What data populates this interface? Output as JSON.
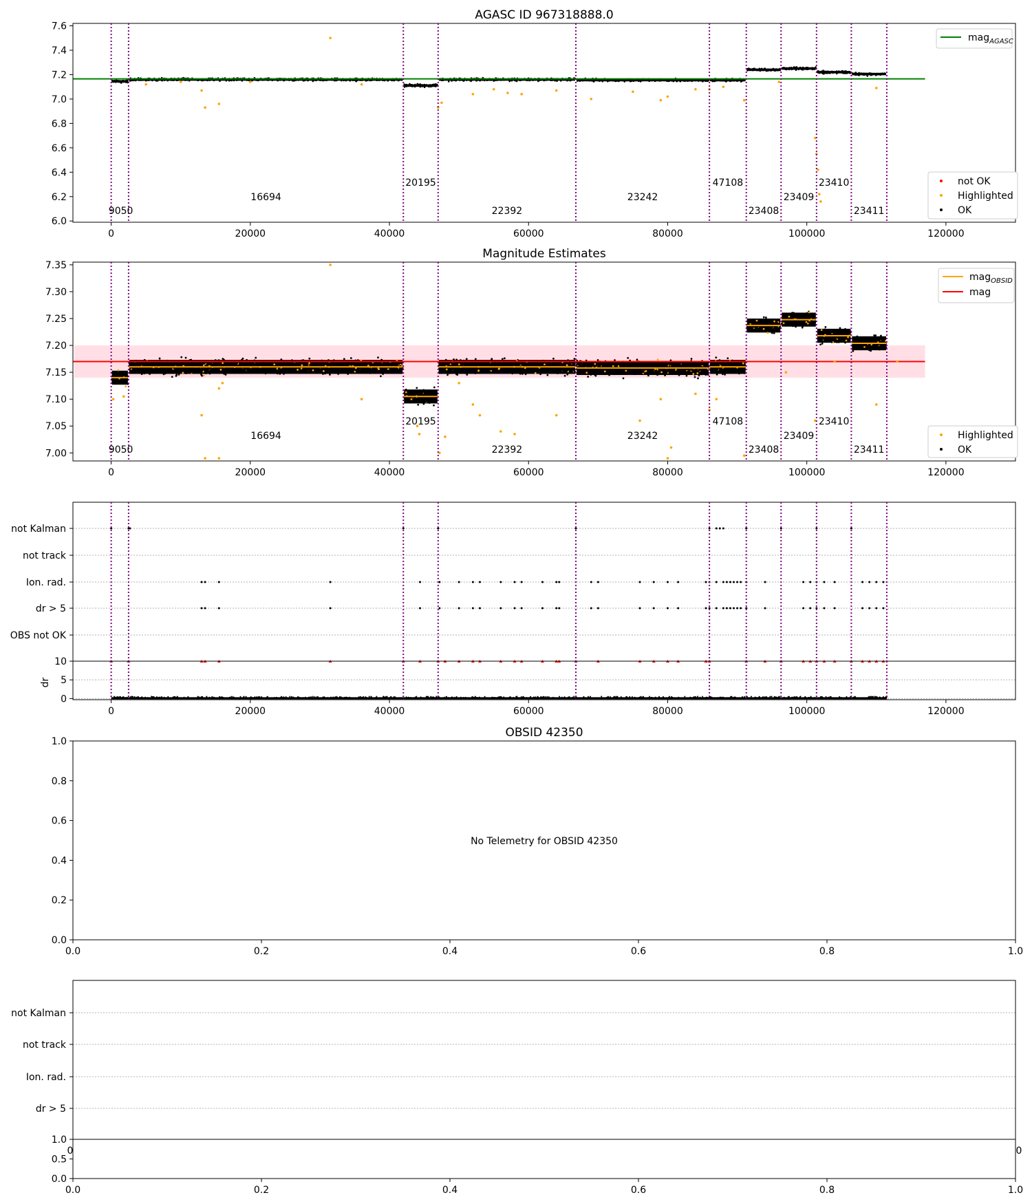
{
  "colors": {
    "ok": "#000000",
    "highlighted": "#ffa500",
    "not_ok": "#ff0000",
    "mag_agasc": "#008000",
    "mag": "#ff0000",
    "mag_obsid": "#ffa500",
    "obs_boundary": "#800080",
    "band": "#ffc0cb",
    "grid": "#b0b0b0"
  },
  "chart_data": [
    {
      "id": "agasc",
      "type": "scatter",
      "title": "AGASC ID 967318888.0",
      "xlim": [
        -5500,
        130000
      ],
      "ylim": [
        5.99,
        7.62
      ],
      "xticks": [
        0,
        20000,
        40000,
        60000,
        80000,
        100000,
        120000
      ],
      "yticks": [
        6.0,
        6.2,
        6.4,
        6.6,
        6.8,
        7.0,
        7.2,
        7.4,
        7.6
      ],
      "ytick_labels": [
        "6.0",
        "6.2",
        "6.4",
        "6.6",
        "6.8",
        "7.0",
        "7.2",
        "7.4",
        "7.6"
      ],
      "mag_agasc": 7.165,
      "line_legend": [
        {
          "name": "mag",
          "sub": "AGASC",
          "color": "#008000"
        }
      ],
      "point_legend": [
        "not OK",
        "Highlighted",
        "OK"
      ],
      "highlighted_points": [
        [
          31500,
          7.5
        ],
        [
          13500,
          6.93
        ],
        [
          15500,
          6.96
        ],
        [
          13000,
          7.07
        ],
        [
          5000,
          7.12
        ],
        [
          10000,
          7.14
        ],
        [
          20000,
          7.14
        ],
        [
          36000,
          7.12
        ],
        [
          47000,
          6.93
        ],
        [
          47500,
          6.97
        ],
        [
          52000,
          7.04
        ],
        [
          55000,
          7.08
        ],
        [
          57000,
          7.05
        ],
        [
          59000,
          7.04
        ],
        [
          64000,
          7.07
        ],
        [
          69000,
          7.0
        ],
        [
          75000,
          7.06
        ],
        [
          79000,
          6.99
        ],
        [
          80000,
          7.02
        ],
        [
          84000,
          7.08
        ],
        [
          86000,
          7.08
        ],
        [
          88000,
          7.1
        ],
        [
          91000,
          6.99
        ],
        [
          101200,
          6.68
        ],
        [
          101400,
          6.55
        ],
        [
          101600,
          6.42
        ],
        [
          101800,
          6.22
        ],
        [
          102000,
          6.16
        ],
        [
          110000,
          7.09
        ],
        [
          96000,
          7.14
        ]
      ]
    },
    {
      "id": "mag_estimates",
      "type": "scatter",
      "title": "Magnitude Estimates",
      "xlim": [
        -5500,
        130000
      ],
      "ylim": [
        6.985,
        7.355
      ],
      "xticks": [
        0,
        20000,
        40000,
        60000,
        80000,
        100000,
        120000
      ],
      "yticks": [
        7.0,
        7.05,
        7.1,
        7.15,
        7.2,
        7.25,
        7.3,
        7.35
      ],
      "ytick_labels": [
        "7.00",
        "7.05",
        "7.10",
        "7.15",
        "7.20",
        "7.25",
        "7.30",
        "7.35"
      ],
      "mag": 7.17,
      "mag_band": [
        7.14,
        7.2
      ],
      "line_legend": [
        {
          "name": "mag",
          "sub": "OBSID",
          "color": "#ffa500"
        },
        {
          "name": "mag",
          "sub": "",
          "color": "#ff0000"
        }
      ],
      "point_legend": [
        "Highlighted",
        "OK"
      ],
      "highlighted_points": [
        [
          31500,
          7.35
        ],
        [
          13000,
          7.07
        ],
        [
          15500,
          7.12
        ],
        [
          16000,
          7.13
        ],
        [
          300,
          7.1
        ],
        [
          1800,
          7.105
        ],
        [
          36000,
          7.1
        ],
        [
          44000,
          7.05
        ],
        [
          44300,
          7.035
        ],
        [
          47200,
          7.0
        ],
        [
          48000,
          7.03
        ],
        [
          50000,
          7.13
        ],
        [
          52000,
          7.09
        ],
        [
          53000,
          7.07
        ],
        [
          56000,
          7.04
        ],
        [
          58000,
          7.035
        ],
        [
          64000,
          7.07
        ],
        [
          76000,
          7.06
        ],
        [
          79000,
          7.1
        ],
        [
          80500,
          7.01
        ],
        [
          84000,
          7.11
        ],
        [
          86000,
          7.08
        ],
        [
          87000,
          7.1
        ],
        [
          91000,
          6.995
        ],
        [
          97000,
          7.15
        ],
        [
          101200,
          7.06
        ],
        [
          104000,
          7.17
        ],
        [
          110000,
          7.09
        ],
        [
          113000,
          7.17
        ],
        [
          13500,
          6.99
        ],
        [
          15500,
          6.99
        ],
        [
          80000,
          6.99
        ]
      ]
    },
    {
      "id": "flags",
      "type": "scatter",
      "rows": [
        "not Kalman",
        "not track",
        "Ion. rad.",
        "dr > 5",
        "OBS not OK"
      ],
      "row_points": {
        "not Kalman": [
          0,
          2500,
          2700,
          42000,
          47000,
          66800,
          86000,
          87000,
          87500,
          88000,
          91300,
          96300,
          101400,
          106400
        ],
        "Ion. rad.": [
          13000,
          13500,
          15500,
          31500,
          44400,
          47200,
          50000,
          52000,
          53000,
          56000,
          58000,
          59000,
          62000,
          64000,
          64400,
          69000,
          70000,
          76000,
          78000,
          80000,
          81500,
          85500,
          86000,
          87000,
          88000,
          88500,
          89000,
          89500,
          90000,
          90500,
          91300,
          94000,
          99500,
          100500,
          101400,
          102500,
          104000,
          108000,
          109000,
          110000,
          111000
        ],
        "dr > 5": [
          13000,
          13500,
          15500,
          31500,
          44400,
          47200,
          50000,
          52000,
          53000,
          56000,
          58000,
          59000,
          62000,
          64000,
          64400,
          69000,
          70000,
          76000,
          78000,
          80000,
          81500,
          85500,
          86000,
          87000,
          88000,
          88500,
          89000,
          89500,
          90000,
          90500,
          91300,
          94000,
          99500,
          100500,
          101400,
          102500,
          104000,
          108000,
          109000,
          110000,
          111000
        ]
      }
    },
    {
      "id": "dr",
      "type": "scatter",
      "ylabel": "dr",
      "xlim": [
        -5500,
        130000
      ],
      "ylim": [
        -0.3,
        10
      ],
      "xticks": [
        0,
        20000,
        40000,
        60000,
        80000,
        100000,
        120000
      ],
      "yticks": [
        0,
        5,
        10
      ],
      "ytick_labels": [
        "0",
        "5",
        "10"
      ],
      "red_points": [
        0,
        2500,
        13000,
        13500,
        15500,
        31500,
        42000,
        44400,
        47000,
        48000,
        50000,
        52000,
        53000,
        56000,
        58000,
        59000,
        62000,
        64000,
        64400,
        66800,
        70000,
        76000,
        78000,
        80000,
        81500,
        85500,
        86000,
        91300,
        94000,
        96300,
        99500,
        100500,
        101400,
        102500,
        104000,
        106400,
        108000,
        109000,
        110000,
        111000
      ]
    },
    {
      "id": "obsid_mag",
      "type": "scatter",
      "title": "OBSID 42350",
      "annotation": "No Telemetry for OBSID 42350",
      "xlim": [
        0,
        1
      ],
      "ylim": [
        0,
        1
      ],
      "xticks": [
        0,
        0.2,
        0.4,
        0.6,
        0.8,
        1.0
      ],
      "xtick_labels": [
        "0.0",
        "0.2",
        "0.4",
        "0.6",
        "0.8",
        "1.0"
      ],
      "yticks": [
        0,
        0.2,
        0.4,
        0.6,
        0.8,
        1.0
      ],
      "ytick_labels": [
        "0.0",
        "0.2",
        "0.4",
        "0.6",
        "0.8",
        "1.0"
      ]
    },
    {
      "id": "obsid_flags",
      "type": "scatter",
      "rows": [
        "not Kalman",
        "not track",
        "Ion. rad.",
        "dr > 5"
      ],
      "clipped_tick_labels": [
        "0",
        "0"
      ]
    },
    {
      "id": "obsid_dr",
      "type": "scatter",
      "xlim": [
        0,
        1
      ],
      "ylim": [
        0,
        1
      ],
      "xticks": [
        0,
        0.2,
        0.4,
        0.6,
        0.8,
        1.0
      ],
      "xtick_labels": [
        "0.0",
        "0.2",
        "0.4",
        "0.6",
        "0.8",
        "1.0"
      ],
      "yticks": [
        0,
        0.5,
        1.0
      ],
      "ytick_labels": [
        "0.0",
        "0.5",
        "1.0"
      ]
    }
  ],
  "observations": [
    {
      "obsid": "9050",
      "start": 0,
      "end": 2500,
      "mag": 7.14,
      "agasc_level": 7.145,
      "label_level": 1
    },
    {
      "obsid": "16694",
      "start": 2500,
      "end": 42000,
      "mag": 7.16,
      "agasc_level": 7.16,
      "label_level": 2
    },
    {
      "obsid": "20195",
      "start": 42000,
      "end": 47000,
      "mag": 7.105,
      "agasc_level": 7.11,
      "label_level": 3
    },
    {
      "obsid": "22392",
      "start": 47000,
      "end": 66800,
      "mag": 7.16,
      "agasc_level": 7.16,
      "label_level": 1
    },
    {
      "obsid": "23242",
      "start": 66800,
      "end": 86000,
      "mag": 7.158,
      "agasc_level": 7.155,
      "label_level": 2
    },
    {
      "obsid": "47108",
      "start": 86000,
      "end": 91300,
      "mag": 7.16,
      "agasc_level": 7.155,
      "label_level": 3
    },
    {
      "obsid": "23408",
      "start": 91300,
      "end": 96300,
      "mag": 7.237,
      "agasc_level": 7.24,
      "label_level": 1
    },
    {
      "obsid": "23409",
      "start": 96300,
      "end": 101400,
      "mag": 7.248,
      "agasc_level": 7.25,
      "label_level": 2
    },
    {
      "obsid": "23410",
      "start": 101400,
      "end": 106400,
      "mag": 7.218,
      "agasc_level": 7.22,
      "label_level": 3
    },
    {
      "obsid": "23411",
      "start": 106400,
      "end": 111500,
      "mag": 7.204,
      "agasc_level": 7.205,
      "label_level": 1
    }
  ]
}
